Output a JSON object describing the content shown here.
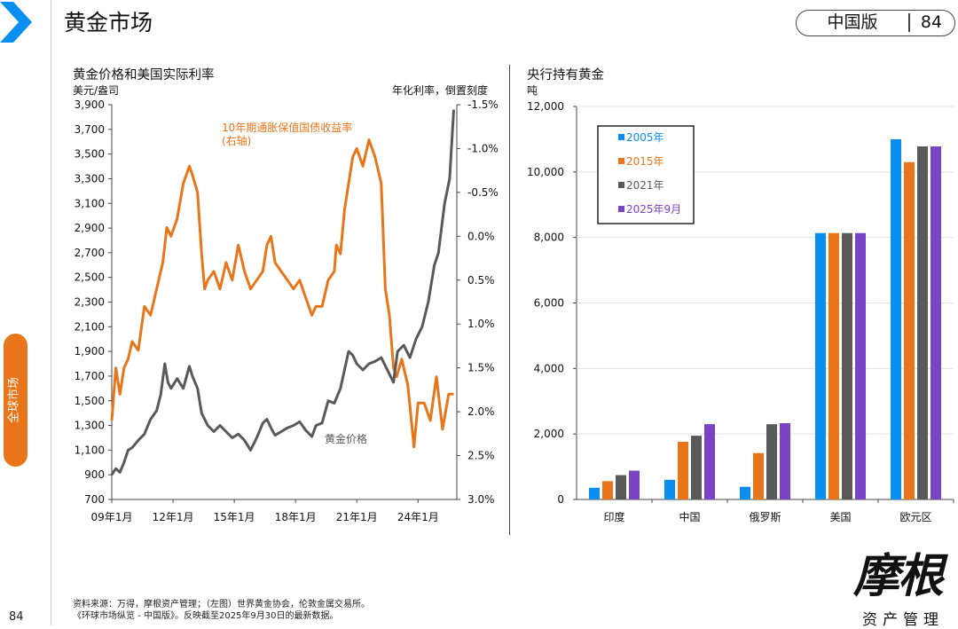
{
  "header": {
    "title": "黄金市场",
    "edition": "中国版",
    "page": "84"
  },
  "sidebar": {
    "tab_label": "全球市场",
    "page_number": "84"
  },
  "colors": {
    "orange": "#e8751a",
    "gray": "#595959",
    "blue": "#0a8ef0",
    "dark_gray": "#595959",
    "purple": "#7a45c4",
    "chevron": "#0a8ef0"
  },
  "icons": {
    "chevron": "chevron-right-icon"
  },
  "left_chart": {
    "title": "黄金价格和美国实际利率",
    "left_unit": "美元/盎司",
    "right_unit": "年化利率，倒置刻度"
  },
  "right_chart": {
    "title": "央行持有黄金",
    "unit": "吨"
  },
  "footer": {
    "line1": "资料来源：万得，摩根资产管理；（左图）世界黄金协会，伦敦金属交易所。",
    "line2": "《环球市场纵览 - 中国版》。反映截至2025年9月30日的最新数据。"
  },
  "logo": {
    "script": "摩根",
    "sub": "资产管理"
  },
  "chart_data": [
    {
      "type": "line",
      "title": "黄金价格和美国实际利率",
      "xlabel": "",
      "x_ticks": [
        "09年1月",
        "12年1月",
        "15年1月",
        "18年1月",
        "21年1月",
        "24年1月"
      ],
      "y_left": {
        "label": "美元/盎司",
        "ylim": [
          700,
          3900
        ],
        "ticks": [
          "3,900",
          "3,700",
          "3,500",
          "3,300",
          "3,100",
          "2,900",
          "2,700",
          "2,500",
          "2,300",
          "2,100",
          "1,900",
          "1,700",
          "1,500",
          "1,300",
          "1,100",
          "900",
          "700"
        ]
      },
      "y_right": {
        "label": "年化利率，倒置刻度",
        "ylim": [
          -1.5,
          3.0
        ],
        "inverted": true,
        "ticks": [
          "-1.5%",
          "-1.0%",
          "-0.5%",
          "0.0%",
          "0.5%",
          "1.0%",
          "1.5%",
          "2.0%",
          "2.5%",
          "3.0%"
        ]
      },
      "grid": false,
      "series": [
        {
          "name": "10年期通胀保值国债收益率 (右轴)",
          "axis": "right",
          "label_lines": [
            "10年期通胀保值国债收益率",
            "(右轴)"
          ],
          "x": [
            2009.0,
            2009.2,
            2009.4,
            2009.6,
            2009.8,
            2010.0,
            2010.3,
            2010.6,
            2010.9,
            2011.2,
            2011.5,
            2011.7,
            2011.9,
            2012.2,
            2012.5,
            2012.8,
            2012.95,
            2013.2,
            2013.4,
            2013.55,
            2013.7,
            2014.0,
            2014.3,
            2014.6,
            2014.9,
            2015.2,
            2015.5,
            2015.8,
            2016.1,
            2016.4,
            2016.6,
            2016.8,
            2017.0,
            2017.3,
            2017.6,
            2017.9,
            2018.2,
            2018.5,
            2018.8,
            2019.0,
            2019.3,
            2019.6,
            2019.9,
            2020.0,
            2020.2,
            2020.4,
            2020.6,
            2020.8,
            2021.0,
            2021.3,
            2021.6,
            2021.9,
            2022.0,
            2022.2,
            2022.4,
            2022.6,
            2022.8,
            2022.95,
            2023.2,
            2023.5,
            2023.8,
            2024.0,
            2024.3,
            2024.6,
            2024.9,
            2025.2,
            2025.5,
            2025.75
          ],
          "y": [
            2.1,
            1.5,
            1.8,
            1.5,
            1.4,
            1.2,
            1.3,
            0.8,
            0.9,
            0.6,
            0.3,
            -0.1,
            0.0,
            -0.2,
            -0.6,
            -0.8,
            -0.7,
            -0.5,
            0.2,
            0.6,
            0.5,
            0.4,
            0.6,
            0.3,
            0.5,
            0.1,
            0.4,
            0.6,
            0.5,
            0.4,
            0.1,
            0.0,
            0.3,
            0.4,
            0.5,
            0.6,
            0.5,
            0.7,
            0.9,
            0.8,
            0.8,
            0.5,
            0.4,
            0.1,
            0.2,
            -0.3,
            -0.6,
            -0.9,
            -1.0,
            -0.8,
            -1.1,
            -0.9,
            -0.8,
            -0.6,
            0.6,
            0.9,
            1.5,
            1.6,
            1.4,
            1.7,
            2.4,
            1.9,
            1.9,
            2.1,
            1.6,
            2.2,
            1.8,
            1.8
          ]
        },
        {
          "name": "黄金价格",
          "axis": "left",
          "label_lines": [
            "黄金价格"
          ],
          "x": [
            2009.0,
            2009.2,
            2009.4,
            2009.6,
            2009.8,
            2010.0,
            2010.3,
            2010.6,
            2010.9,
            2011.2,
            2011.4,
            2011.6,
            2011.75,
            2011.9,
            2012.2,
            2012.5,
            2012.8,
            2012.95,
            2013.2,
            2013.4,
            2013.55,
            2013.7,
            2014.0,
            2014.3,
            2014.6,
            2014.9,
            2015.2,
            2015.5,
            2015.8,
            2016.1,
            2016.4,
            2016.6,
            2016.8,
            2017.0,
            2017.3,
            2017.6,
            2017.9,
            2018.2,
            2018.5,
            2018.8,
            2019.0,
            2019.3,
            2019.6,
            2019.9,
            2020.2,
            2020.4,
            2020.6,
            2020.8,
            2021.0,
            2021.3,
            2021.6,
            2021.9,
            2022.2,
            2022.5,
            2022.8,
            2023.0,
            2023.3,
            2023.6,
            2023.9,
            2024.2,
            2024.5,
            2024.8,
            2025.0,
            2025.3,
            2025.55,
            2025.75
          ],
          "y": [
            900,
            950,
            920,
            1000,
            1100,
            1120,
            1180,
            1230,
            1350,
            1420,
            1550,
            1800,
            1650,
            1600,
            1680,
            1600,
            1780,
            1700,
            1600,
            1400,
            1350,
            1300,
            1250,
            1300,
            1250,
            1200,
            1230,
            1180,
            1100,
            1200,
            1320,
            1350,
            1280,
            1220,
            1250,
            1280,
            1300,
            1330,
            1260,
            1210,
            1300,
            1320,
            1500,
            1480,
            1600,
            1750,
            1900,
            1870,
            1800,
            1750,
            1800,
            1820,
            1850,
            1750,
            1650,
            1900,
            1950,
            1850,
            2000,
            2100,
            2300,
            2600,
            2700,
            3100,
            3300,
            3860
          ]
        }
      ]
    },
    {
      "type": "bar",
      "title": "央行持有黄金",
      "ylabel": "吨",
      "categories": [
        "印度",
        "中国",
        "俄罗斯",
        "美国",
        "欧元区"
      ],
      "ylim": [
        0,
        12000
      ],
      "y_ticks": [
        "12,000",
        "10,000",
        "8,000",
        "6,000",
        "4,000",
        "2,000",
        "0"
      ],
      "legend_position": "top-left",
      "series": [
        {
          "name": "2005年",
          "values": [
            358,
            600,
            387,
            8134,
            11000
          ]
        },
        {
          "name": "2015年",
          "values": [
            558,
            1762,
            1415,
            8134,
            10300
          ]
        },
        {
          "name": "2021年",
          "values": [
            744,
            1948,
            2298,
            8134,
            10780
          ]
        },
        {
          "name": "2025年9月",
          "values": [
            880,
            2300,
            2330,
            8134,
            10780
          ]
        }
      ]
    }
  ]
}
